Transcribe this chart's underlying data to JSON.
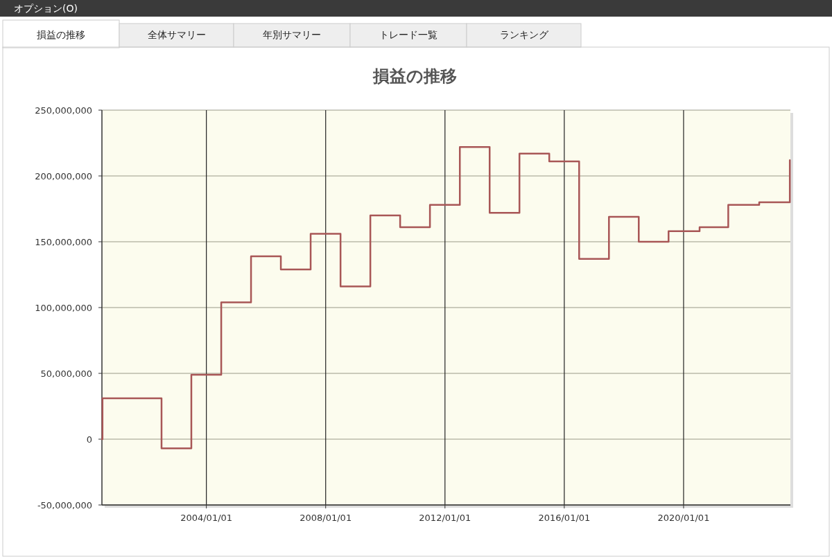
{
  "chart_data": {
    "type": "step",
    "title": "損益の推移",
    "annotations": [
      "オプション(O)",
      "損益の推移",
      "全体サマリー",
      "年別サマリー",
      "トレード一覧",
      "ランキング"
    ],
    "x": [
      "2000-07-01",
      "2000-07-08",
      "2002-07-01",
      "2003-07-01",
      "2004-07-01",
      "2005-07-01",
      "2006-07-01",
      "2007-07-01",
      "2008-07-01",
      "2009-07-01",
      "2010-07-01",
      "2011-07-01",
      "2012-07-01",
      "2013-07-01",
      "2014-07-01",
      "2015-07-01",
      "2016-07-01",
      "2017-07-01",
      "2018-07-01",
      "2019-07-01",
      "2020-07-15",
      "2021-07-01",
      "2022-07-15",
      "2023-07-25"
    ],
    "series": [
      {
        "color": "#a85656",
        "values": [
          0,
          31000000,
          -7000000,
          49000000,
          104000000,
          139000000,
          129000000,
          156000000,
          116000000,
          170000000,
          161000000,
          178000000,
          222000000,
          172000000,
          217000000,
          211000000,
          137000000,
          169000000,
          150000000,
          158000000,
          161000000,
          178000000,
          180000000,
          212000000
        ]
      }
    ],
    "xlim": [
      "2000-07-01",
      "2023-08-01"
    ],
    "xticks": [
      {
        "value": "2004-01-01",
        "label": "2004/01/01"
      },
      {
        "value": "2008-01-01",
        "label": "2008/01/01"
      },
      {
        "value": "2012-01-01",
        "label": "2012/01/01"
      },
      {
        "value": "2016-01-01",
        "label": "2016/01/01"
      },
      {
        "value": "2020-01-01",
        "label": "2020/01/01"
      }
    ],
    "ylim": [
      -50000000,
      250000000
    ],
    "yticks": [
      {
        "value": -50000000,
        "label": "-50,000,000"
      },
      {
        "value": 0,
        "label": "0"
      },
      {
        "value": 50000000,
        "label": "50,000,000"
      },
      {
        "value": 100000000,
        "label": "100,000,000"
      },
      {
        "value": 150000000,
        "label": "150,000,000"
      },
      {
        "value": 200000000,
        "label": "200,000,000"
      },
      {
        "value": 250000000,
        "label": "250,000,000"
      }
    ],
    "grid": true,
    "line_style": "solid"
  }
}
